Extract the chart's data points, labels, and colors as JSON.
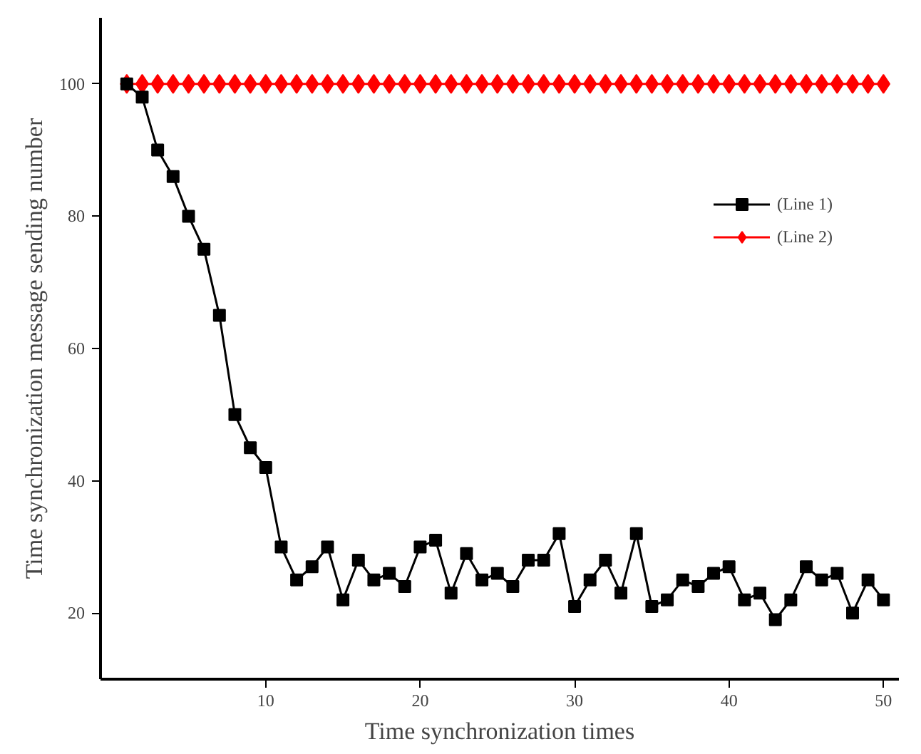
{
  "chart_data": {
    "type": "line",
    "xlabel": "Time synchronization times",
    "ylabel": "Time synchronization message sending number",
    "x": [
      1,
      2,
      3,
      4,
      5,
      6,
      7,
      8,
      9,
      10,
      11,
      12,
      13,
      14,
      15,
      16,
      17,
      18,
      19,
      20,
      21,
      22,
      23,
      24,
      25,
      26,
      27,
      28,
      29,
      30,
      31,
      32,
      33,
      34,
      35,
      36,
      37,
      38,
      39,
      40,
      41,
      42,
      43,
      44,
      45,
      46,
      47,
      48,
      49,
      50
    ],
    "series": [
      {
        "name": "(Line 1)",
        "color": "#000000",
        "marker": "square",
        "values": [
          100,
          98,
          90,
          86,
          80,
          75,
          65,
          50,
          45,
          42,
          30,
          25,
          27,
          30,
          22,
          28,
          25,
          26,
          24,
          30,
          31,
          23,
          29,
          25,
          26,
          24,
          28,
          28,
          32,
          21,
          25,
          28,
          23,
          32,
          21,
          22,
          25,
          24,
          26,
          27,
          22,
          23,
          19,
          22,
          27,
          25,
          26,
          20,
          25,
          22
        ]
      },
      {
        "name": "(Line 2)",
        "color": "#ff0000",
        "marker": "diamond",
        "values": [
          100,
          100,
          100,
          100,
          100,
          100,
          100,
          100,
          100,
          100,
          100,
          100,
          100,
          100,
          100,
          100,
          100,
          100,
          100,
          100,
          100,
          100,
          100,
          100,
          100,
          100,
          100,
          100,
          100,
          100,
          100,
          100,
          100,
          100,
          100,
          100,
          100,
          100,
          100,
          100,
          100,
          100,
          100,
          100,
          100,
          100,
          100,
          100,
          100,
          100
        ]
      }
    ],
    "xlim": [
      -0.7,
      51
    ],
    "ylim": [
      10,
      110
    ],
    "xticks": [
      10,
      20,
      30,
      40,
      50
    ],
    "yticks": [
      20,
      40,
      60,
      80,
      100
    ],
    "grid": false,
    "legend": "top right",
    "line_style": "solid"
  }
}
